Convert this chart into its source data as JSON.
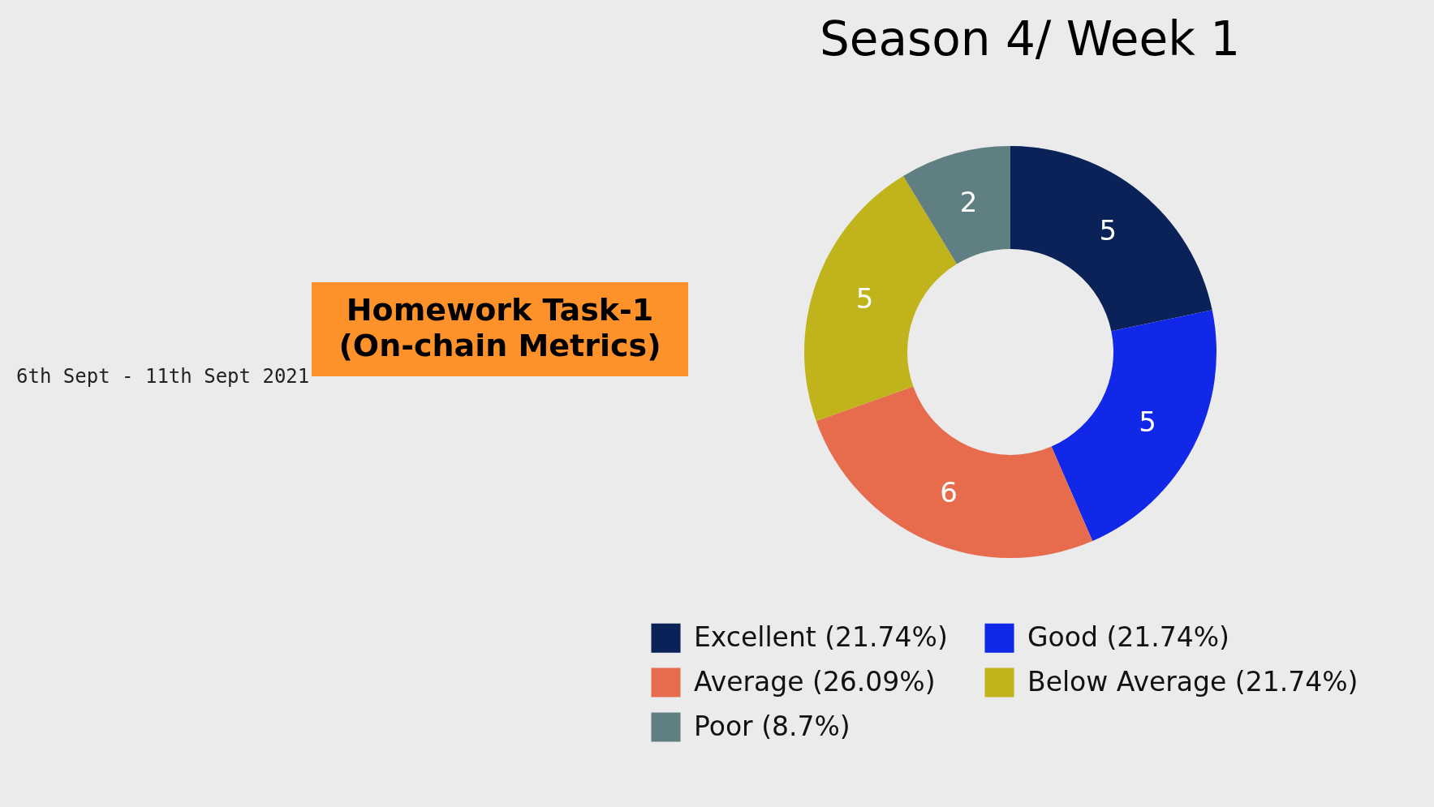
{
  "chart_data": {
    "type": "donut",
    "title": "Season 4/ Week 1",
    "categories": [
      "Excellent (21.74%)",
      "Good (21.74%)",
      "Average (26.09%)",
      "Below Average (21.74%)",
      "Poor (8.7%)"
    ],
    "values": [
      5,
      5,
      6,
      5,
      2
    ],
    "colors": [
      "#0b2258",
      "#1228e8",
      "#e76b4d",
      "#c1b31b",
      "#607f82"
    ],
    "data_labels": true,
    "legend": "bottom",
    "annotations": [
      "Homework Task-1\n(On-chain Metrics)",
      "6th Sept - 11th Sept 2021"
    ]
  }
}
